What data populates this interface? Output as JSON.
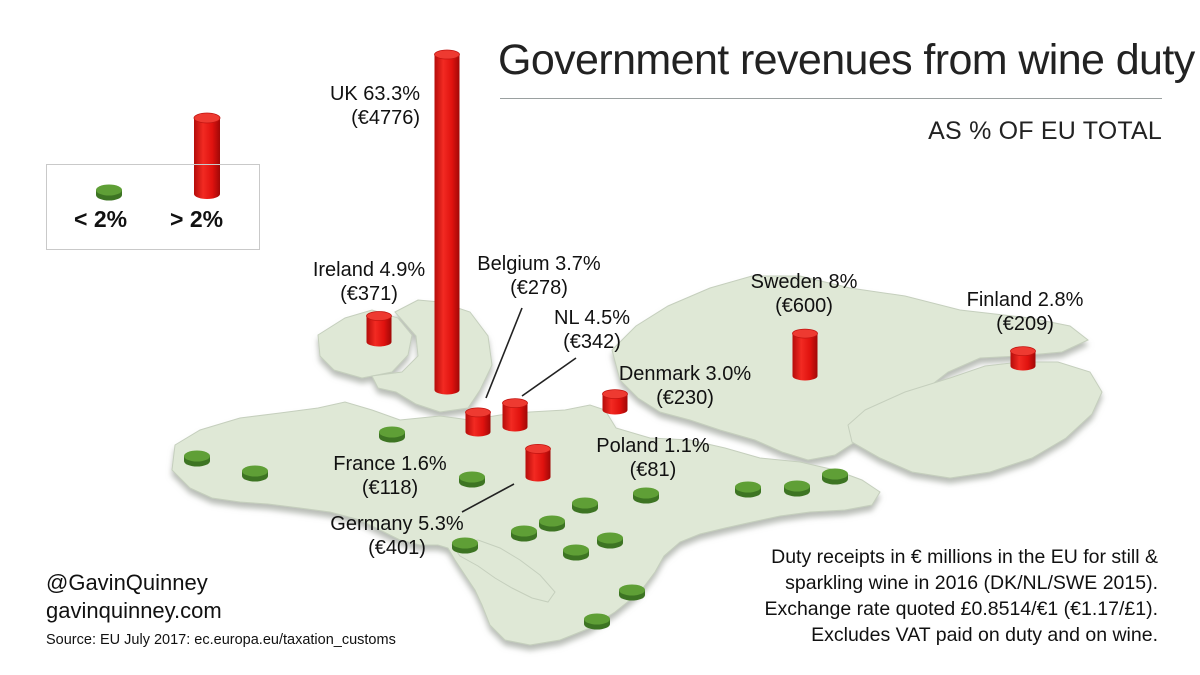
{
  "title": "Government revenues from wine duty",
  "subtitle": "AS % OF EU TOTAL",
  "legend": {
    "low_label": "< 2%",
    "high_label": "> 2%",
    "low_color": "#5a9a32",
    "high_color": "#e0120f"
  },
  "map_fill": "#dfe8d6",
  "countries": [
    {
      "id": "uk",
      "name_line": "UK 63.3%",
      "amount_line": "(€4776)",
      "percent": 63.3,
      "amount_eur_m": 4776,
      "marker": "tall-cylinder"
    },
    {
      "id": "ireland",
      "name_line": "Ireland 4.9%",
      "amount_line": "(€371)",
      "percent": 4.9,
      "amount_eur_m": 371,
      "marker": "cylinder"
    },
    {
      "id": "belgium",
      "name_line": "Belgium 3.7%",
      "amount_line": "(€278)",
      "percent": 3.7,
      "amount_eur_m": 278,
      "marker": "cylinder"
    },
    {
      "id": "nl",
      "name_line": "NL 4.5%",
      "amount_line": "(€342)",
      "percent": 4.5,
      "amount_eur_m": 342,
      "marker": "cylinder"
    },
    {
      "id": "denmark",
      "name_line": "Denmark 3.0%",
      "amount_line": "(€230)",
      "percent": 3.0,
      "amount_eur_m": 230,
      "marker": "cylinder"
    },
    {
      "id": "sweden",
      "name_line": "Sweden 8%",
      "amount_line": "(€600)",
      "percent": 8,
      "amount_eur_m": 600,
      "marker": "cylinder"
    },
    {
      "id": "finland",
      "name_line": "Finland 2.8%",
      "amount_line": "(€209)",
      "percent": 2.8,
      "amount_eur_m": 209,
      "marker": "cylinder"
    },
    {
      "id": "poland",
      "name_line": "Poland 1.1%",
      "amount_line": "(€81)",
      "percent": 1.1,
      "amount_eur_m": 81,
      "marker": "disc"
    },
    {
      "id": "france",
      "name_line": "France 1.6%",
      "amount_line": "(€118)",
      "percent": 1.6,
      "amount_eur_m": 118,
      "marker": "disc"
    },
    {
      "id": "germany",
      "name_line": "Germany 5.3%",
      "amount_line": "(€401)",
      "percent": 5.3,
      "amount_eur_m": 401,
      "marker": "cylinder"
    }
  ],
  "notes": [
    "Duty receipts in € millions in the EU for still &",
    "sparkling wine in 2016 (DK/NL/SWE 2015).",
    "Exchange rate quoted £0.8514/€1 (€1.17/£1).",
    "Excludes VAT paid on duty and on wine."
  ],
  "credits": {
    "handle": "@GavinQuinney",
    "website": "gavinquinney.com",
    "source": "Source: EU July 2017: ec.europa.eu/taxation_customs"
  }
}
